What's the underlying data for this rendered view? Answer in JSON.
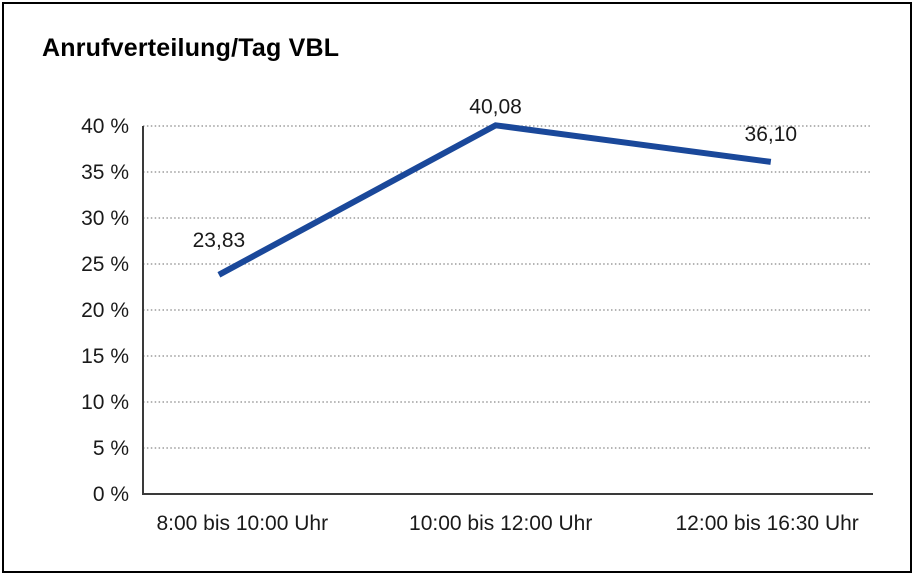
{
  "page": {
    "background": "#ffffff",
    "border_color": "#000000"
  },
  "chart_data": {
    "type": "line",
    "title": "Anrufverteilung/Tag VBL",
    "categories": [
      "8:00 bis 10:00 Uhr",
      "10:00 bis 12:00 Uhr",
      "12:00 bis 16:30 Uhr"
    ],
    "series": [
      {
        "values": [
          23.83,
          40.08,
          36.1
        ],
        "point_labels": [
          "23,83",
          "40,08",
          "36,10"
        ]
      }
    ],
    "xlabel": "",
    "ylabel": "",
    "ylim": [
      0,
      40
    ],
    "ytick_step": 5,
    "ytick_labels": [
      "0 %",
      "5 %",
      "10 %",
      "15 %",
      "20 %",
      "25 %",
      "30 %",
      "35 %",
      "40 %"
    ],
    "grid": "horizontal-dotted",
    "legend": "none",
    "colors": {
      "line": "#1a489a",
      "axis": "#3a3a3a",
      "grid": "#888888",
      "text": "#1a1a1a",
      "title": "#000000"
    }
  }
}
